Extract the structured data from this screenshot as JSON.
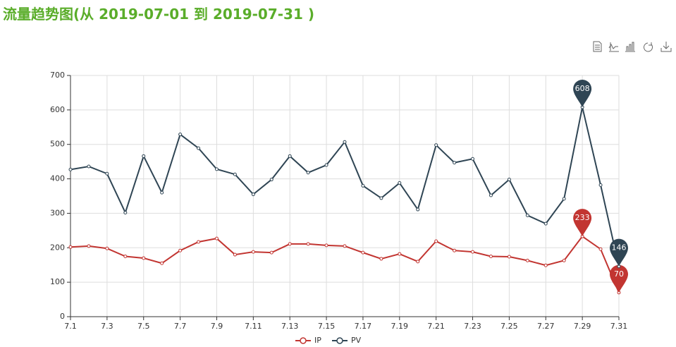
{
  "chart_data": {
    "type": "line",
    "title": "流量趋势图(从 2019-07-01 到 2019-07-31 )",
    "categories": [
      "7.1",
      null,
      "7.3",
      null,
      "7.5",
      null,
      "7.7",
      null,
      "7.9",
      null,
      "7.11",
      null,
      "7.13",
      null,
      "7.15",
      null,
      "7.17",
      null,
      "7.19",
      null,
      "7.21",
      null,
      "7.23",
      null,
      "7.25",
      null,
      "7.27",
      null,
      "7.29",
      null,
      "7.31"
    ],
    "series": [
      {
        "name": "IP",
        "color": "#c23531",
        "values": [
          202,
          205,
          198,
          175,
          170,
          155,
          192,
          217,
          227,
          180,
          188,
          186,
          211,
          211,
          207,
          205,
          186,
          168,
          182,
          160,
          219,
          192,
          188,
          175,
          174,
          163,
          149,
          163,
          233,
          196,
          70
        ]
      },
      {
        "name": "PV",
        "color": "#2f4554",
        "values": [
          427,
          436,
          415,
          302,
          466,
          360,
          529,
          489,
          428,
          413,
          355,
          398,
          466,
          418,
          440,
          507,
          380,
          344,
          388,
          311,
          498,
          447,
          458,
          352,
          398,
          294,
          270,
          342,
          608,
          382,
          146
        ]
      }
    ],
    "ylim": [
      0,
      700
    ],
    "yticks": [
      0,
      100,
      200,
      300,
      400,
      500,
      600,
      700
    ],
    "grid": true,
    "mark_points": [
      "max",
      "min"
    ],
    "legend": "bottom"
  }
}
